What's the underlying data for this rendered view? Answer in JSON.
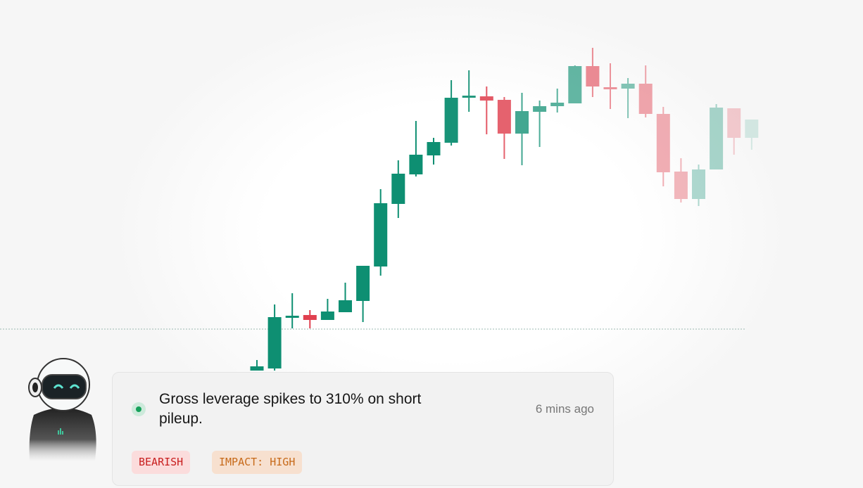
{
  "chart_data": {
    "type": "candlestick",
    "title": "",
    "xlabel": "",
    "ylabel": "",
    "ylim": [
      0,
      700
    ],
    "reference_line": 232,
    "colors": {
      "up": "#0e8f72",
      "down": "#e0404f",
      "reference_line": "#9bb8b0"
    },
    "fade": "right side fades out",
    "candles": [
      {
        "o": 173,
        "c": 179,
        "h": 188,
        "l": 173
      },
      {
        "o": 176,
        "c": 249,
        "h": 267,
        "l": 173
      },
      {
        "o": 248,
        "c": 251,
        "h": 283,
        "l": 233
      },
      {
        "o": 252,
        "c": 245,
        "h": 259,
        "l": 233
      },
      {
        "o": 245,
        "c": 257,
        "h": 275,
        "l": 245
      },
      {
        "o": 256,
        "c": 273,
        "h": 298,
        "l": 256
      },
      {
        "o": 272,
        "c": 322,
        "h": 322,
        "l": 242
      },
      {
        "o": 321,
        "c": 411,
        "h": 431,
        "l": 308
      },
      {
        "o": 410,
        "c": 453,
        "h": 472,
        "l": 390
      },
      {
        "o": 452,
        "c": 480,
        "h": 528,
        "l": 449
      },
      {
        "o": 479,
        "c": 498,
        "h": 504,
        "l": 466
      },
      {
        "o": 497,
        "c": 561,
        "h": 586,
        "l": 493
      },
      {
        "o": 561,
        "c": 564,
        "h": 600,
        "l": 541
      },
      {
        "o": 563,
        "c": 557,
        "h": 577,
        "l": 509
      },
      {
        "o": 558,
        "c": 510,
        "h": 562,
        "l": 474
      },
      {
        "o": 510,
        "c": 542,
        "h": 568,
        "l": 465
      },
      {
        "o": 541,
        "c": 549,
        "h": 557,
        "l": 491
      },
      {
        "o": 549,
        "c": 554,
        "h": 574,
        "l": 540
      },
      {
        "o": 553,
        "c": 606,
        "h": 607,
        "l": 553
      },
      {
        "o": 606,
        "c": 577,
        "h": 632,
        "l": 562
      },
      {
        "o": 576,
        "c": 574,
        "h": 610,
        "l": 545
      },
      {
        "o": 574,
        "c": 581,
        "h": 589,
        "l": 532
      },
      {
        "o": 581,
        "c": 538,
        "h": 607,
        "l": 533
      },
      {
        "o": 538,
        "c": 455,
        "h": 548,
        "l": 435
      },
      {
        "o": 456,
        "c": 417,
        "h": 475,
        "l": 412
      },
      {
        "o": 417,
        "c": 459,
        "h": 466,
        "l": 407
      },
      {
        "o": 459,
        "c": 547,
        "h": 552,
        "l": 459
      },
      {
        "o": 546,
        "c": 504,
        "h": 546,
        "l": 480
      },
      {
        "o": 504,
        "c": 530,
        "h": 530,
        "l": 487
      }
    ]
  },
  "notification": {
    "status_color": "#16a05a",
    "headline": "Gross leverage spikes to 310% on short pileup.",
    "time": "6 mins ago",
    "tags": [
      "BEARISH",
      "IMPACT: HIGH"
    ]
  },
  "avatar": {
    "icon": "robot-mascot-icon"
  }
}
